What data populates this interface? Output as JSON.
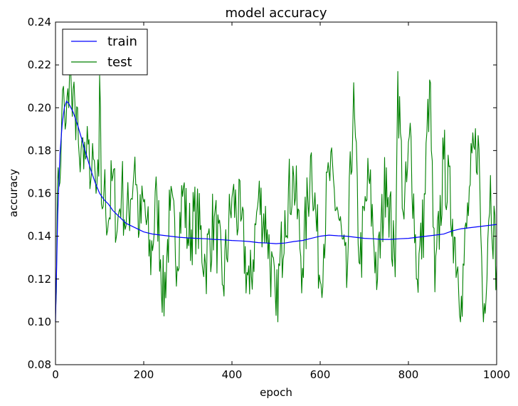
{
  "chart_data": {
    "type": "line",
    "title": "model accuracy",
    "xlabel": "epoch",
    "ylabel": "accuracy",
    "xlim": [
      0,
      1000
    ],
    "ylim": [
      0.08,
      0.24
    ],
    "x_ticks": [
      "0",
      "200",
      "400",
      "600",
      "800",
      "1000"
    ],
    "y_ticks": [
      "0.08",
      "0.10",
      "0.12",
      "0.14",
      "0.16",
      "0.18",
      "0.20",
      "0.22",
      "0.24"
    ],
    "grid": false,
    "legend_position": "upper-left",
    "legend": [
      "train",
      "test"
    ],
    "series": [
      {
        "name": "train",
        "color": "#0000ff",
        "x": [
          0,
          5,
          10,
          15,
          20,
          25,
          30,
          40,
          50,
          60,
          70,
          80,
          90,
          100,
          110,
          120,
          130,
          140,
          150,
          160,
          170,
          180,
          190,
          200,
          220,
          240,
          260,
          280,
          300,
          320,
          340,
          360,
          380,
          400,
          420,
          440,
          460,
          480,
          500,
          520,
          540,
          560,
          580,
          600,
          620,
          640,
          660,
          680,
          700,
          720,
          740,
          760,
          780,
          800,
          820,
          840,
          860,
          880,
          900,
          920,
          940,
          960,
          980,
          1000
        ],
        "values": [
          0.1,
          0.15,
          0.178,
          0.192,
          0.2,
          0.203,
          0.202,
          0.198,
          0.192,
          0.185,
          0.178,
          0.171,
          0.165,
          0.16,
          0.157,
          0.155,
          0.152,
          0.15,
          0.148,
          0.146,
          0.145,
          0.144,
          0.143,
          0.142,
          0.141,
          0.1405,
          0.14,
          0.1395,
          0.1392,
          0.139,
          0.1388,
          0.1385,
          0.1383,
          0.138,
          0.1378,
          0.1375,
          0.137,
          0.1368,
          0.1365,
          0.1368,
          0.1375,
          0.138,
          0.139,
          0.14,
          0.1405,
          0.1402,
          0.14,
          0.1395,
          0.139,
          0.1388,
          0.1385,
          0.1385,
          0.1388,
          0.139,
          0.1395,
          0.14,
          0.1405,
          0.141,
          0.1425,
          0.1435,
          0.144,
          0.1445,
          0.145,
          0.1455
        ]
      },
      {
        "name": "test",
        "color": "#008000",
        "x_start": 0,
        "x_step": 2,
        "key_points": [
          [
            0,
            0.104
          ],
          [
            6,
            0.172
          ],
          [
            10,
            0.165
          ],
          [
            14,
            0.195
          ],
          [
            18,
            0.21
          ],
          [
            22,
            0.19
          ],
          [
            26,
            0.205
          ],
          [
            30,
            0.2
          ],
          [
            34,
            0.22
          ],
          [
            38,
            0.196
          ],
          [
            42,
            0.212
          ],
          [
            46,
            0.185
          ],
          [
            50,
            0.2
          ],
          [
            56,
            0.17
          ],
          [
            62,
            0.186
          ],
          [
            68,
            0.176
          ],
          [
            74,
            0.183
          ],
          [
            80,
            0.166
          ],
          [
            86,
            0.176
          ],
          [
            92,
            0.16
          ],
          [
            98,
            0.168
          ],
          [
            100,
            0.215
          ],
          [
            104,
            0.155
          ],
          [
            110,
            0.162
          ],
          [
            120,
            0.147
          ],
          [
            130,
            0.168
          ],
          [
            140,
            0.143
          ],
          [
            150,
            0.164
          ],
          [
            160,
            0.145
          ],
          [
            170,
            0.157
          ],
          [
            180,
            0.177
          ],
          [
            190,
            0.142
          ],
          [
            200,
            0.156
          ],
          [
            215,
            0.129
          ],
          [
            230,
            0.158
          ],
          [
            245,
            0.11
          ],
          [
            260,
            0.152
          ],
          [
            275,
            0.133
          ],
          [
            290,
            0.163
          ],
          [
            300,
            0.139
          ],
          [
            320,
            0.15
          ],
          [
            340,
            0.127
          ],
          [
            360,
            0.149
          ],
          [
            380,
            0.117
          ],
          [
            400,
            0.158
          ],
          [
            420,
            0.147
          ],
          [
            440,
            0.113
          ],
          [
            460,
            0.158
          ],
          [
            480,
            0.143
          ],
          [
            500,
            0.103
          ],
          [
            520,
            0.152
          ],
          [
            540,
            0.168
          ],
          [
            560,
            0.125
          ],
          [
            580,
            0.179
          ],
          [
            600,
            0.119
          ],
          [
            620,
            0.17
          ],
          [
            640,
            0.152
          ],
          [
            660,
            0.116
          ],
          [
            675,
            0.203
          ],
          [
            690,
            0.127
          ],
          [
            710,
            0.167
          ],
          [
            730,
            0.12
          ],
          [
            750,
            0.172
          ],
          [
            770,
            0.121
          ],
          [
            775,
            0.217
          ],
          [
            790,
            0.148
          ],
          [
            805,
            0.187
          ],
          [
            820,
            0.12
          ],
          [
            835,
            0.148
          ],
          [
            848,
            0.213
          ],
          [
            860,
            0.114
          ],
          [
            880,
            0.176
          ],
          [
            900,
            0.148
          ],
          [
            920,
            0.112
          ],
          [
            940,
            0.164
          ],
          [
            958,
            0.187
          ],
          [
            970,
            0.1
          ],
          [
            985,
            0.166
          ],
          [
            1000,
            0.126
          ]
        ],
        "noise_amplitude": 0.018,
        "value_range": [
          0.1,
          0.222
        ]
      }
    ]
  }
}
